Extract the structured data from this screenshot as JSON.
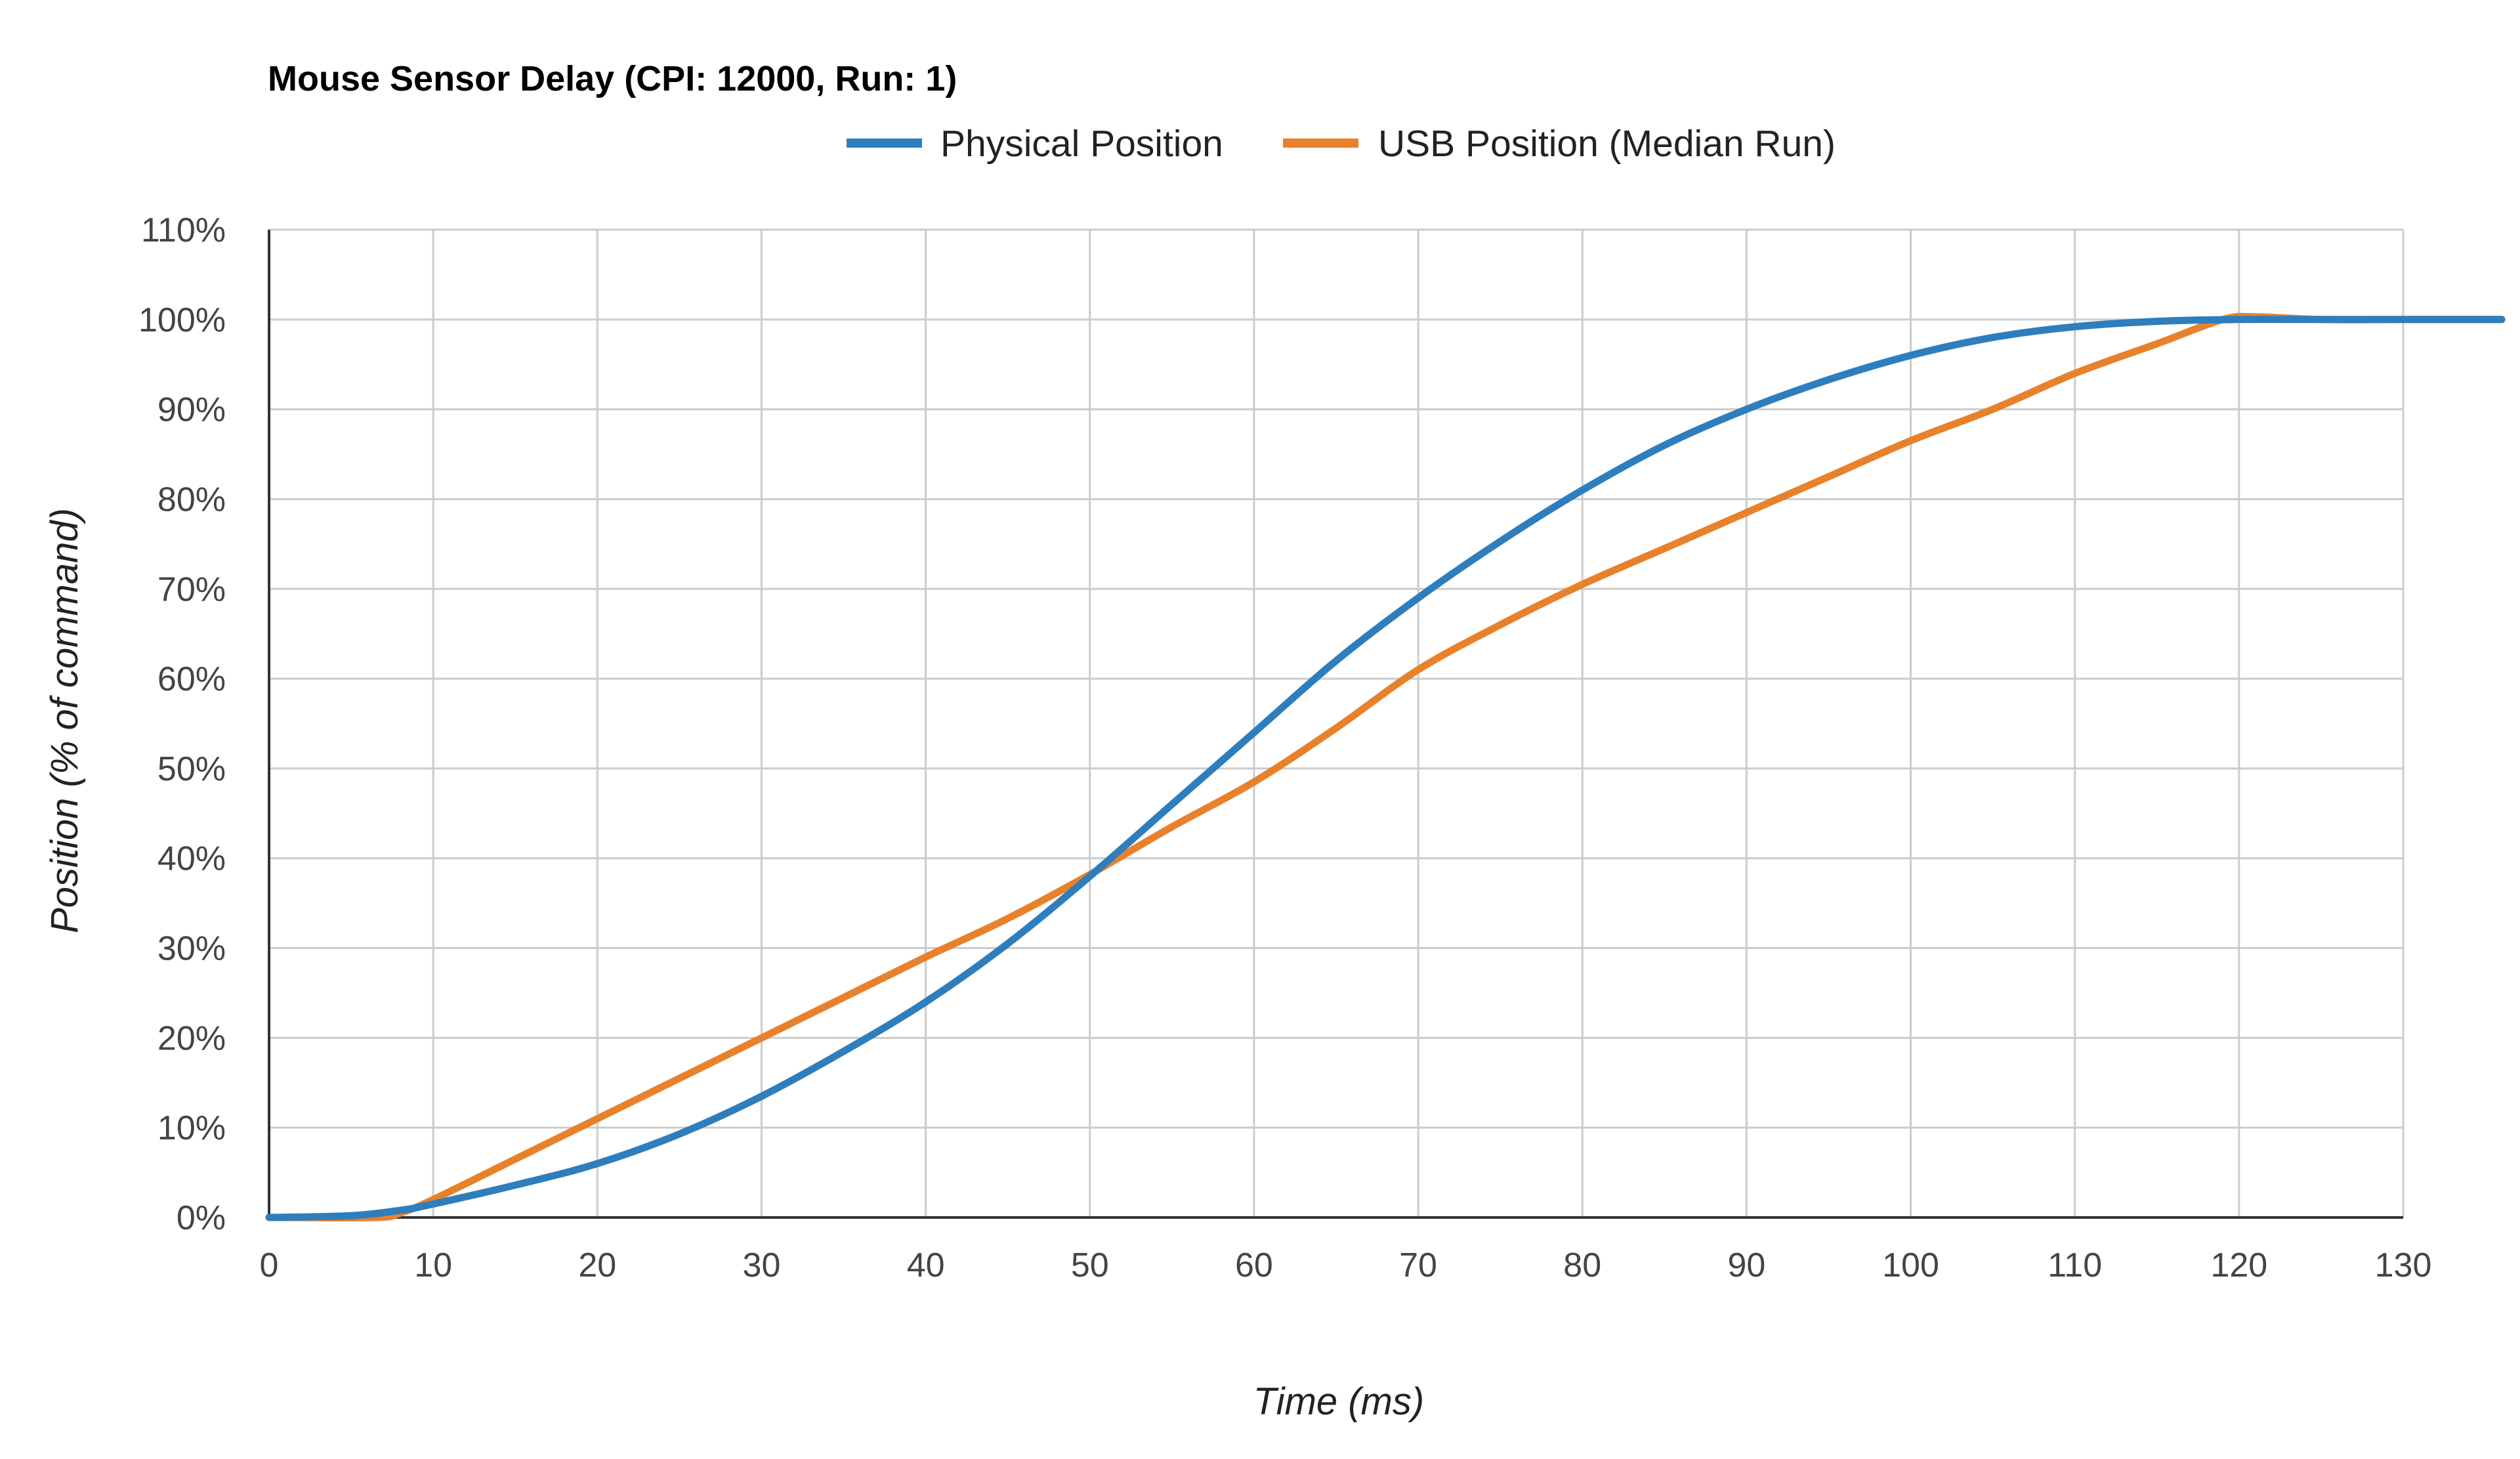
{
  "chart_data": {
    "type": "line",
    "title": "Mouse Sensor Delay (CPI: 12000, Run: 1)",
    "xlabel": "Time (ms)",
    "ylabel": "Position (% of command)",
    "xlim": [
      0,
      130
    ],
    "ylim": [
      0,
      110
    ],
    "x_ticks": [
      0,
      10,
      20,
      30,
      40,
      50,
      60,
      70,
      80,
      90,
      100,
      110,
      120,
      130
    ],
    "x_tick_labels": [
      "0",
      "10",
      "20",
      "30",
      "40",
      "50",
      "60",
      "70",
      "80",
      "90",
      "100",
      "110",
      "120",
      "130"
    ],
    "y_ticks": [
      0,
      10,
      20,
      30,
      40,
      50,
      60,
      70,
      80,
      90,
      100,
      110
    ],
    "y_tick_labels": [
      "0%",
      "10%",
      "20%",
      "30%",
      "40%",
      "50%",
      "60%",
      "70%",
      "80%",
      "90%",
      "100%",
      "110%"
    ],
    "grid": true,
    "legend_position": "top-center",
    "series": [
      {
        "name": "Physical Position",
        "color": "#2e7ebe",
        "x": [
          0,
          5,
          8,
          10,
          15,
          20,
          25,
          30,
          35,
          40,
          45,
          50,
          55,
          60,
          65,
          70,
          75,
          80,
          85,
          90,
          95,
          100,
          105,
          110,
          115,
          120,
          125,
          130,
          136
        ],
        "y": [
          0,
          0.2,
          0.8,
          1.5,
          3.6,
          6.0,
          9.3,
          13.5,
          18.5,
          24.0,
          30.5,
          38.0,
          46.0,
          54.0,
          62.0,
          69.0,
          75.3,
          81.0,
          86.0,
          90.0,
          93.3,
          96.0,
          98.0,
          99.2,
          99.8,
          100,
          100,
          100,
          100
        ]
      },
      {
        "name": "USB Position (Median Run)",
        "color": "#e8812b",
        "x": [
          0,
          6.5,
          8,
          10,
          15,
          20,
          25,
          30,
          35,
          40,
          45,
          50,
          55,
          60,
          65,
          70,
          75,
          80,
          85,
          90,
          95,
          100,
          105,
          110,
          115,
          119,
          121,
          125,
          130,
          136
        ],
        "y": [
          0,
          0,
          0.5,
          2.0,
          6.5,
          11.0,
          15.5,
          20.0,
          24.5,
          29.0,
          33.3,
          38.2,
          43.5,
          48.5,
          54.5,
          61.0,
          66.0,
          70.5,
          74.5,
          78.5,
          82.5,
          86.5,
          90.0,
          94.0,
          97.3,
          100,
          100.3,
          100,
          100,
          100
        ]
      }
    ]
  }
}
